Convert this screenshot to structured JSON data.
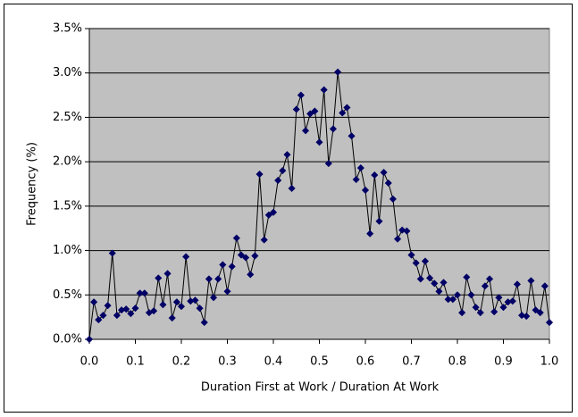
{
  "chart_data": {
    "type": "line",
    "x_label": "Duration First at Work / Duration At Work",
    "y_label": "Frequency (%)",
    "x": [
      0,
      0.01,
      0.02,
      0.03,
      0.04,
      0.05,
      0.06,
      0.07,
      0.08,
      0.09,
      0.1,
      0.11,
      0.12,
      0.13,
      0.14,
      0.15,
      0.16,
      0.17,
      0.18,
      0.19,
      0.2,
      0.21,
      0.22,
      0.23,
      0.24,
      0.25,
      0.26,
      0.27,
      0.28,
      0.29,
      0.3,
      0.31,
      0.32,
      0.33,
      0.34,
      0.35,
      0.36,
      0.37,
      0.38,
      0.39,
      0.4,
      0.41,
      0.42,
      0.43,
      0.44,
      0.45,
      0.46,
      0.47,
      0.48,
      0.49,
      0.5,
      0.51,
      0.52,
      0.53,
      0.54,
      0.55,
      0.56,
      0.57,
      0.58,
      0.59,
      0.6,
      0.61,
      0.62,
      0.63,
      0.64,
      0.65,
      0.66,
      0.67,
      0.68,
      0.69,
      0.7,
      0.71,
      0.72,
      0.73,
      0.74,
      0.75,
      0.76,
      0.77,
      0.78,
      0.79,
      0.8,
      0.81,
      0.82,
      0.83,
      0.84,
      0.85,
      0.86,
      0.87,
      0.88,
      0.89,
      0.9,
      0.91,
      0.92,
      0.93,
      0.94,
      0.95,
      0.96,
      0.97,
      0.98,
      0.99,
      1
    ],
    "values": [
      0,
      0.42,
      0.22,
      0.27,
      0.38,
      0.97,
      0.27,
      0.33,
      0.34,
      0.29,
      0.35,
      0.52,
      0.52,
      0.3,
      0.32,
      0.69,
      0.39,
      0.74,
      0.24,
      0.42,
      0.37,
      0.93,
      0.43,
      0.44,
      0.35,
      0.19,
      0.68,
      0.47,
      0.68,
      0.84,
      0.54,
      0.82,
      1.14,
      0.95,
      0.92,
      0.73,
      0.94,
      1.86,
      1.12,
      1.4,
      1.43,
      1.79,
      1.9,
      2.08,
      1.7,
      2.59,
      2.75,
      2.35,
      2.54,
      2.57,
      2.22,
      2.81,
      1.98,
      2.37,
      3.01,
      2.55,
      2.61,
      2.29,
      1.8,
      1.93,
      1.68,
      1.19,
      1.85,
      1.33,
      1.88,
      1.76,
      1.58,
      1.13,
      1.23,
      1.22,
      0.95,
      0.86,
      0.68,
      0.88,
      0.69,
      0.63,
      0.54,
      0.64,
      0.45,
      0.45,
      0.5,
      0.3,
      0.7,
      0.5,
      0.36,
      0.3,
      0.6,
      0.68,
      0.31,
      0.47,
      0.36,
      0.42,
      0.43,
      0.62,
      0.27,
      0.26,
      0.66,
      0.33,
      0.3,
      0.6,
      0.19
    ],
    "color": "#000066",
    "xlim": [
      0,
      1
    ],
    "xticks": [
      {
        "value": 0,
        "label": "0.0"
      },
      {
        "value": 0.1,
        "label": "0.1"
      },
      {
        "value": 0.2,
        "label": "0.2"
      },
      {
        "value": 0.3,
        "label": "0.3"
      },
      {
        "value": 0.4,
        "label": "0.4"
      },
      {
        "value": 0.5,
        "label": "0.5"
      },
      {
        "value": 0.6,
        "label": "0.6"
      },
      {
        "value": 0.7,
        "label": "0.7"
      },
      {
        "value": 0.8,
        "label": "0.8"
      },
      {
        "value": 0.9,
        "label": "0.9"
      },
      {
        "value": 1,
        "label": "1.0"
      }
    ],
    "ylim": [
      0,
      3.5
    ],
    "yticks": [
      {
        "value": 0,
        "label": "0.0%"
      },
      {
        "value": 0.5,
        "label": "0.5%"
      },
      {
        "value": 1,
        "label": "1.0%"
      },
      {
        "value": 1.5,
        "label": "1.5%"
      },
      {
        "value": 2,
        "label": "2.0%"
      },
      {
        "value": 2.5,
        "label": "2.5%"
      },
      {
        "value": 3,
        "label": "3.0%"
      },
      {
        "value": 3.5,
        "label": "3.5%"
      }
    ],
    "grid": true
  }
}
